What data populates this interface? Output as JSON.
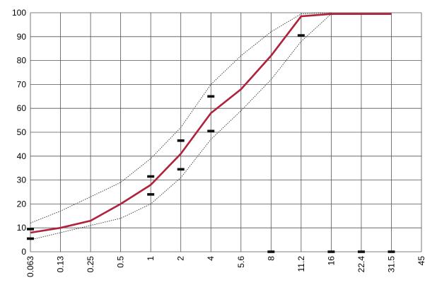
{
  "chart_data": {
    "type": "line",
    "title": "",
    "xlabel": "",
    "ylabel": "",
    "x_scale": "log",
    "ylim": [
      0,
      100
    ],
    "y_ticks": [
      0,
      10,
      20,
      30,
      40,
      50,
      60,
      70,
      80,
      90,
      100
    ],
    "x_ticks": [
      0.063,
      0.13,
      0.25,
      0.5,
      1,
      2,
      4,
      5.6,
      8,
      11.2,
      16,
      22.4,
      31.5,
      45
    ],
    "x_tick_labels": [
      "0.063",
      "0.13",
      "0.25",
      "0.5",
      "1",
      "2",
      "4",
      "5.6",
      "8",
      "11.2",
      "16",
      "22.4",
      "31.5",
      "45"
    ],
    "grid": true,
    "series": [
      {
        "style": "solid",
        "color": "#b0223c",
        "x": [
          0.063,
          0.13,
          0.25,
          0.5,
          1,
          2,
          4,
          5.6,
          8,
          11.2,
          16,
          22.4,
          31.5
        ],
        "values": [
          8,
          10,
          13,
          20,
          28,
          41,
          58,
          68,
          82,
          98.5,
          99.5,
          99.5,
          99.5
        ]
      },
      {
        "style": "dotted",
        "color": "#333333",
        "x": [
          0.063,
          0.13,
          0.25,
          0.5,
          1,
          2,
          4,
          5.6,
          8,
          11.2,
          16
        ],
        "values": [
          12,
          17,
          23,
          29,
          39,
          52,
          70,
          82,
          92,
          99.5,
          100
        ]
      },
      {
        "style": "dotted",
        "color": "#333333",
        "x": [
          0.063,
          0.13,
          0.25,
          0.5,
          1,
          2,
          4,
          5.6,
          8,
          11.2,
          16
        ],
        "values": [
          5,
          8,
          11,
          14,
          20,
          31,
          47,
          59,
          72,
          88,
          99.5
        ]
      }
    ],
    "markers": [
      {
        "x": 0.063,
        "y": 9.5
      },
      {
        "x": 0.063,
        "y": 5.5
      },
      {
        "x": 1,
        "y": 31.5
      },
      {
        "x": 1,
        "y": 24
      },
      {
        "x": 2,
        "y": 46.5
      },
      {
        "x": 2,
        "y": 34.5
      },
      {
        "x": 4,
        "y": 65
      },
      {
        "x": 4,
        "y": 50.5
      },
      {
        "x": 8,
        "y": 0
      },
      {
        "x": 11.2,
        "y": 90.5
      },
      {
        "x": 16,
        "y": 0
      },
      {
        "x": 22.4,
        "y": 0
      },
      {
        "x": 31.5,
        "y": 0
      }
    ]
  }
}
